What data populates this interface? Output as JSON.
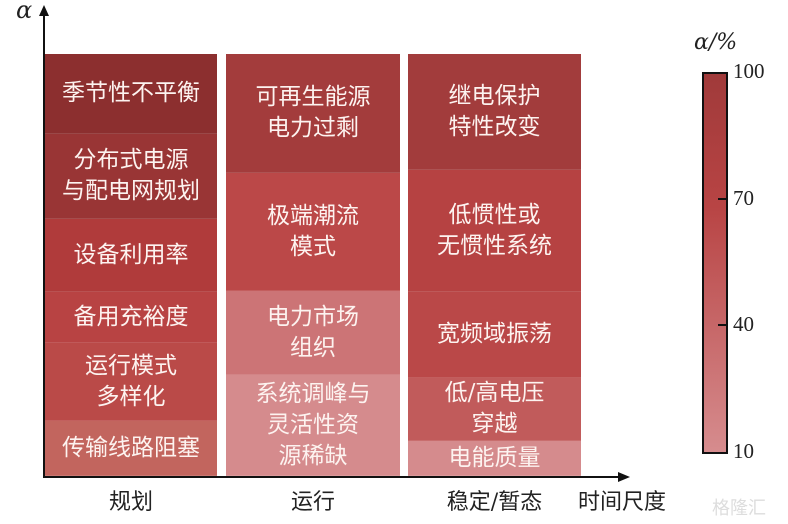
{
  "chart_data": {
    "type": "heatmap",
    "ylabel": "α",
    "xlabel": "时间尺度",
    "colorbar": {
      "label": "α/%",
      "ticks": [
        "100",
        "70",
        "40",
        "10"
      ],
      "range": [
        10,
        100
      ],
      "color_high": "#a03a3a",
      "color_low": "#d68c8e"
    },
    "columns": [
      {
        "label": "规划",
        "cells": [
          {
            "text": "季节性不平衡",
            "color": "#8c2f2f"
          },
          {
            "text": "分布式电源\n与配电网规划",
            "color": "#993535"
          },
          {
            "text": "设备利用率",
            "color": "#b03b3b"
          },
          {
            "text": "备用充裕度",
            "color": "#b84343"
          },
          {
            "text": "运行模式\n多样化",
            "color": "#ba4a48"
          },
          {
            "text": "传输线路阻塞",
            "color": "#c2655e"
          }
        ]
      },
      {
        "label": "运行",
        "cells": [
          {
            "text": "可再生能源\n电力过剩",
            "color": "#a33c3c"
          },
          {
            "text": "极端潮流\n模式",
            "color": "#bb4848"
          },
          {
            "text": "电力市场\n组织",
            "color": "#cc7476"
          },
          {
            "text": "系统调峰与\n灵活性资\n源稀缺",
            "color": "#d58b8d"
          }
        ]
      },
      {
        "label": "稳定/暂态",
        "cells": [
          {
            "text": "继电保护\n特性改变",
            "color": "#a23c3c"
          },
          {
            "text": "低惯性或\n无惯性系统",
            "color": "#b64242"
          },
          {
            "text": "宽频域振荡",
            "color": "#ba4848"
          },
          {
            "text": "低/高电压\n穿越",
            "color": "#c15b5b"
          },
          {
            "text": "电能质量",
            "color": "#d58b8d"
          }
        ]
      }
    ]
  },
  "watermark": "格隆汇"
}
